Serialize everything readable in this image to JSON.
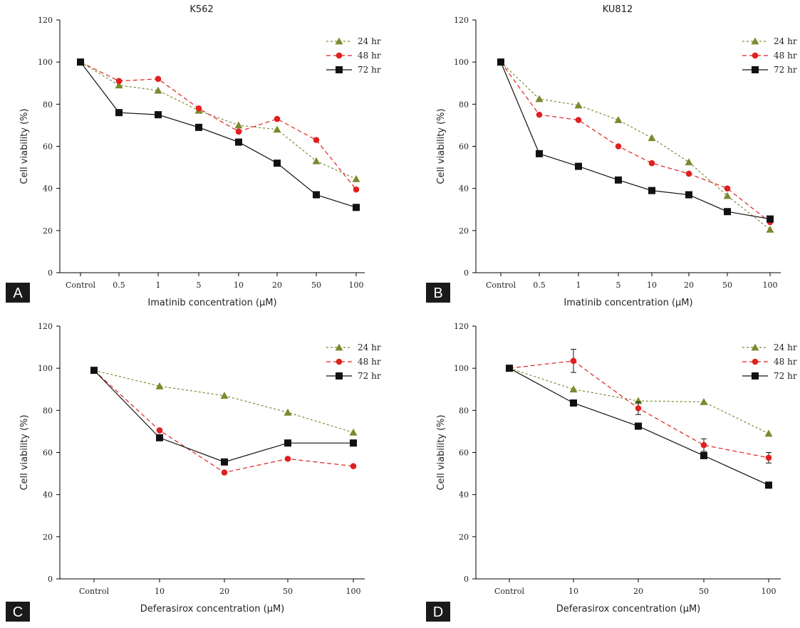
{
  "series_styles": [
    {
      "name": "24 hr",
      "color": "#7a8a2e",
      "dash": "3,3",
      "marker": "triangle"
    },
    {
      "name": "48 hr",
      "color": "#e02020",
      "dash": "6,4",
      "marker": "circle"
    },
    {
      "name": "72 hr",
      "color": "#111111",
      "dash": "",
      "marker": "square"
    }
  ],
  "chart_data": [
    {
      "panel": "A",
      "type": "line",
      "title": "K562",
      "xlabel": "Imatinib concentration (μM)",
      "ylabel": "Cell viability (%)",
      "categories": [
        "Control",
        "0.5",
        "1",
        "5",
        "10",
        "20",
        "50",
        "100"
      ],
      "ylim": [
        0,
        120
      ],
      "yticks": [
        0,
        20,
        40,
        60,
        80,
        100,
        120
      ],
      "legend_position": "top-right",
      "series": [
        {
          "name": "24 hr",
          "values": [
            100,
            89,
            86.5,
            77,
            70,
            68,
            53,
            44.5
          ]
        },
        {
          "name": "48 hr",
          "values": [
            100,
            91,
            92,
            78,
            67,
            73,
            63,
            39.5
          ]
        },
        {
          "name": "72 hr",
          "values": [
            100,
            76,
            75,
            69,
            62,
            52,
            37,
            31
          ]
        }
      ]
    },
    {
      "panel": "B",
      "type": "line",
      "title": "KU812",
      "xlabel": "Imatinib concentration (μM)",
      "ylabel": "Cell viability (%)",
      "categories": [
        "Control",
        "0.5",
        "1",
        "5",
        "10",
        "20",
        "50",
        "100"
      ],
      "ylim": [
        0,
        120
      ],
      "yticks": [
        0,
        20,
        40,
        60,
        80,
        100,
        120
      ],
      "legend_position": "top-right",
      "series": [
        {
          "name": "24 hr",
          "values": [
            100,
            82.5,
            79.5,
            72.5,
            64,
            52.5,
            36.5,
            20.5
          ]
        },
        {
          "name": "48 hr",
          "values": [
            100,
            75,
            72.5,
            60,
            52,
            47,
            40,
            24
          ]
        },
        {
          "name": "72 hr",
          "values": [
            100,
            56.5,
            50.5,
            44,
            39,
            37,
            29,
            25.5
          ]
        }
      ]
    },
    {
      "panel": "C",
      "type": "line",
      "title": "",
      "xlabel": "Deferasirox concentration (μM)",
      "ylabel": "Cell viability (%)",
      "categories": [
        "Control",
        "10",
        "20",
        "50",
        "100"
      ],
      "ylim": [
        0,
        120
      ],
      "yticks": [
        0,
        20,
        40,
        60,
        80,
        100,
        120
      ],
      "legend_position": "top-right",
      "series": [
        {
          "name": "24 hr",
          "values": [
            99,
            91.5,
            87,
            79,
            69.5
          ]
        },
        {
          "name": "48 hr",
          "values": [
            99,
            70.5,
            50.5,
            57,
            53.5
          ]
        },
        {
          "name": "72 hr",
          "values": [
            99,
            67,
            55.5,
            64.5,
            64.5
          ]
        }
      ]
    },
    {
      "panel": "D",
      "type": "line",
      "title": "",
      "xlabel": "Deferasirox concentration (μM)",
      "ylabel": "Cell viability (%)",
      "categories": [
        "Control",
        "10",
        "20",
        "50",
        "100"
      ],
      "ylim": [
        0,
        120
      ],
      "yticks": [
        0,
        20,
        40,
        60,
        80,
        100,
        120
      ],
      "legend_position": "top-right",
      "series": [
        {
          "name": "24 hr",
          "values": [
            100,
            90,
            84.5,
            84,
            69
          ]
        },
        {
          "name": "48 hr",
          "values": [
            100,
            103.5,
            81,
            63.5,
            57.5
          ],
          "errors": [
            0,
            5.5,
            3,
            3,
            2.5
          ]
        },
        {
          "name": "72 hr",
          "values": [
            100,
            83.5,
            72.5,
            58.5,
            44.5
          ]
        }
      ]
    }
  ]
}
